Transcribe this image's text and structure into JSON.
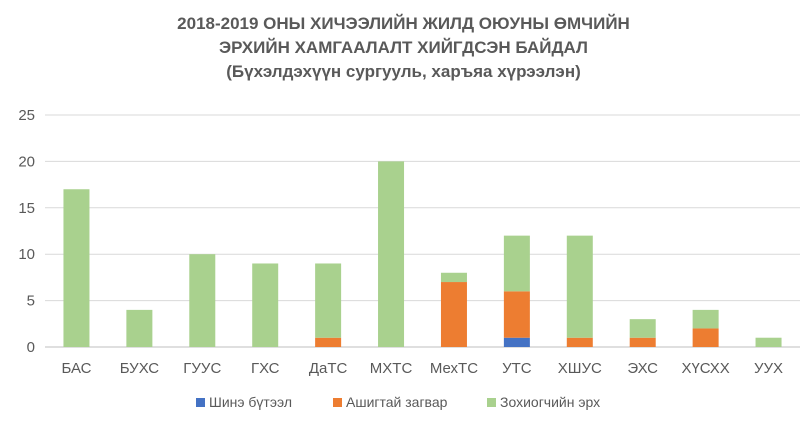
{
  "chart_data": {
    "type": "bar",
    "stacked": true,
    "title_lines": [
      "2018-2019 ОНЫ ХИЧЭЭЛИЙН ЖИЛД ОЮУНЫ ӨМЧИЙН",
      "ЭРХИЙН ХАМГААЛАЛТ ХИЙГДСЭН БАЙДАЛ",
      "(Бүхэлдэхүүн сургууль, харъяа хүрээлэн)"
    ],
    "categories": [
      "БАС",
      "БУХС",
      "ГУУС",
      "ГХС",
      "ДаТС",
      "МХТС",
      "МехТС",
      "УТС",
      "ХШУС",
      "ЭХС",
      "ХҮСХХ",
      "УУХ"
    ],
    "series": [
      {
        "name": "Шинэ бүтээл",
        "color": "#4472C4",
        "values": [
          0,
          0,
          0,
          0,
          0,
          0,
          0,
          1,
          0,
          0,
          0,
          0
        ]
      },
      {
        "name": "Ашигтай загвар",
        "color": "#ED7D31",
        "values": [
          0,
          0,
          0,
          0,
          1,
          0,
          7,
          5,
          1,
          1,
          2,
          0
        ]
      },
      {
        "name": "Зохиогчийн эрх",
        "color": "#A9D18E",
        "values": [
          17,
          4,
          10,
          9,
          8,
          20,
          1,
          6,
          11,
          2,
          2,
          1
        ]
      }
    ],
    "ylim": [
      0,
      25
    ],
    "yticks": [
      "0",
      "5",
      "10",
      "15",
      "20",
      "25"
    ],
    "grid": true,
    "legend_position": "bottom"
  }
}
